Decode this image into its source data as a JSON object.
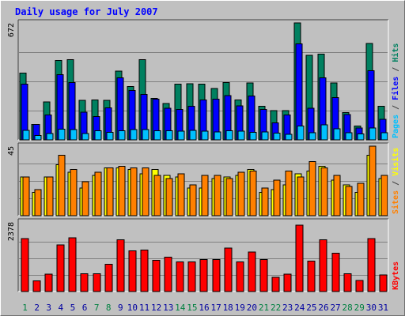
{
  "chart_data": {
    "type": "bar",
    "title": "Daily usage for July 2007",
    "categories": [
      "1",
      "2",
      "3",
      "4",
      "5",
      "6",
      "7",
      "8",
      "9",
      "10",
      "11",
      "12",
      "13",
      "14",
      "15",
      "16",
      "17",
      "18",
      "19",
      "20",
      "21",
      "22",
      "23",
      "24",
      "25",
      "26",
      "27",
      "28",
      "29",
      "30",
      "31"
    ],
    "weekend_days": [
      "1",
      "7",
      "8",
      "14",
      "15",
      "21",
      "22",
      "28",
      "29"
    ],
    "weekday_label_color": "#0000a0",
    "weekend_label_color": "#008040",
    "panels": [
      {
        "id": "top",
        "ymax_label": "672",
        "ylim": [
          0,
          672
        ],
        "legend": [
          {
            "text": "Pages",
            "color": "#00c0ff"
          },
          {
            "text": " / ",
            "color": "#404040"
          },
          {
            "text": "Files",
            "color": "#0000ff"
          },
          {
            "text": " / ",
            "color": "#404040"
          },
          {
            "text": "Hits",
            "color": "#008060"
          }
        ],
        "series": [
          {
            "name": "Hits",
            "color": "#008060",
            "values": [
              383,
              88,
              217,
              457,
              460,
              227,
              229,
              227,
              396,
              307,
              461,
              239,
              209,
              321,
              322,
              321,
              296,
              329,
              230,
              326,
              193,
              167,
              168,
              672,
              486,
              492,
              326,
              156,
              80,
              555,
              192
            ]
          },
          {
            "name": "Files",
            "color": "#0000ff",
            "values": [
              321,
              88,
              144,
              375,
              330,
              159,
              135,
              185,
              356,
              283,
              262,
              233,
              181,
              175,
              193,
              229,
              234,
              254,
              195,
              253,
              175,
              97,
              143,
              551,
              181,
              357,
              243,
              145,
              69,
              397,
              119
            ]
          },
          {
            "name": "Pages",
            "color": "#00c0ff",
            "values": [
              54,
              26,
              37,
              62,
              58,
              36,
              53,
              44,
              52,
              60,
              59,
              52,
              52,
              50,
              55,
              49,
              45,
              52,
              50,
              44,
              45,
              38,
              31,
              79,
              42,
              86,
              63,
              42,
              35,
              68,
              42
            ]
          }
        ]
      },
      {
        "id": "middle",
        "ymax_label": "45",
        "ylim": [
          0,
          45
        ],
        "legend": [
          {
            "text": "Sites",
            "color": "#ff8000"
          },
          {
            "text": " / ",
            "color": "#404040"
          },
          {
            "text": "Visits",
            "color": "#ffff00"
          }
        ],
        "series": [
          {
            "name": "Visits",
            "color": "#ffff00",
            "values": [
              25,
              15,
              25,
              33,
              28,
              18,
              26,
              31,
              31,
              30,
              27,
              30,
              26,
              25,
              18,
              18,
              24,
              25,
              26,
              30,
              15,
              17,
              20,
              27,
              29,
              32,
              23,
              20,
              15,
              39,
              24
            ]
          },
          {
            "name": "Sites",
            "color": "#ff8000",
            "values": [
              25,
              17,
              25,
              39,
              30,
              22,
              28,
              31,
              32,
              31,
              31,
              26,
              24,
              27,
              20,
              26,
              26,
              24,
              28,
              29,
              18,
              23,
              29,
              25,
              35,
              31,
              26,
              19,
              21,
              45,
              26
            ]
          }
        ]
      },
      {
        "id": "bottom",
        "ymax_label": "2378",
        "ylim": [
          0,
          2378
        ],
        "legend": [
          {
            "text": "KBytes",
            "color": "#ff0000"
          }
        ],
        "series": [
          {
            "name": "KBytes",
            "color": "#ff0000",
            "values": [
              1894,
              384,
              629,
              1677,
              1930,
              637,
              637,
              970,
              1850,
              1453,
              1483,
              1119,
              1237,
              1068,
              1068,
              1153,
              1153,
              1551,
              1068,
              1413,
              1143,
              510,
              629,
              2378,
              1083,
              1850,
              1367,
              637,
              403,
              1894,
              600
            ]
          }
        ]
      }
    ]
  }
}
